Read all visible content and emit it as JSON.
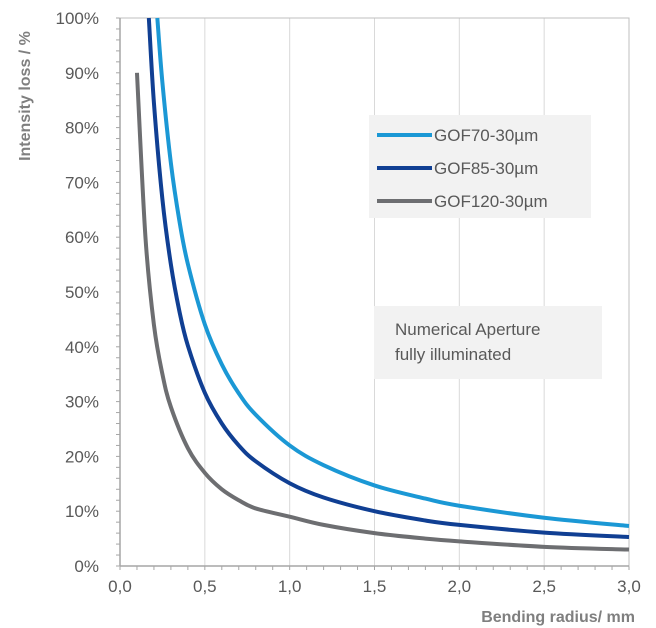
{
  "chart_data": {
    "type": "line",
    "xlabel": "Bending radius/ mm",
    "ylabel": "Intensity loss / %",
    "xlim": [
      0,
      3.0
    ],
    "ylim": [
      0,
      100
    ],
    "x_ticks": [
      "0,0",
      "0,5",
      "1,0",
      "1,5",
      "2,0",
      "2,5",
      "3,0"
    ],
    "y_ticks": [
      "0%",
      "10%",
      "20%",
      "30%",
      "40%",
      "50%",
      "60%",
      "70%",
      "80%",
      "90%",
      "100%"
    ],
    "grid": "vertical",
    "legend_position": "top-right",
    "annotation": [
      "Numerical Aperture",
      "fully illuminated"
    ],
    "series": [
      {
        "name": "GOF70-30µm",
        "color": "#1b98d5",
        "x": [
          0.22,
          0.25,
          0.3,
          0.35,
          0.4,
          0.5,
          0.6,
          0.7,
          0.8,
          1.0,
          1.2,
          1.5,
          1.8,
          2.0,
          2.5,
          3.0
        ],
        "y": [
          100,
          88.2,
          73.5,
          63,
          55.1,
          44.1,
          36.8,
          31.5,
          27.6,
          22,
          18.4,
          14.7,
          12.3,
          11,
          8.8,
          7.3
        ]
      },
      {
        "name": "GOF85-30µm",
        "color": "#103f93",
        "x": [
          0.17,
          0.2,
          0.25,
          0.3,
          0.35,
          0.4,
          0.5,
          0.6,
          0.7,
          0.8,
          1.0,
          1.2,
          1.5,
          1.8,
          2.0,
          2.5,
          3.0
        ],
        "y": [
          100,
          84.5,
          66.9,
          55,
          46.5,
          40.2,
          31.6,
          26,
          22,
          19.1,
          15.1,
          12.5,
          10,
          8.3,
          7.5,
          6.1,
          5.3
        ]
      },
      {
        "name": "GOF120-30µm",
        "color": "#6d6e71",
        "x": [
          0.1,
          0.15,
          0.2,
          0.25,
          0.3,
          0.4,
          0.5,
          0.6,
          0.7,
          0.8,
          1.0,
          1.2,
          1.5,
          1.8,
          2.0,
          2.5,
          3.0
        ],
        "y": [
          90,
          60,
          44,
          35,
          29,
          21.5,
          17,
          14,
          12,
          10.5,
          9,
          7.5,
          6,
          5,
          4.5,
          3.5,
          3
        ]
      }
    ]
  }
}
